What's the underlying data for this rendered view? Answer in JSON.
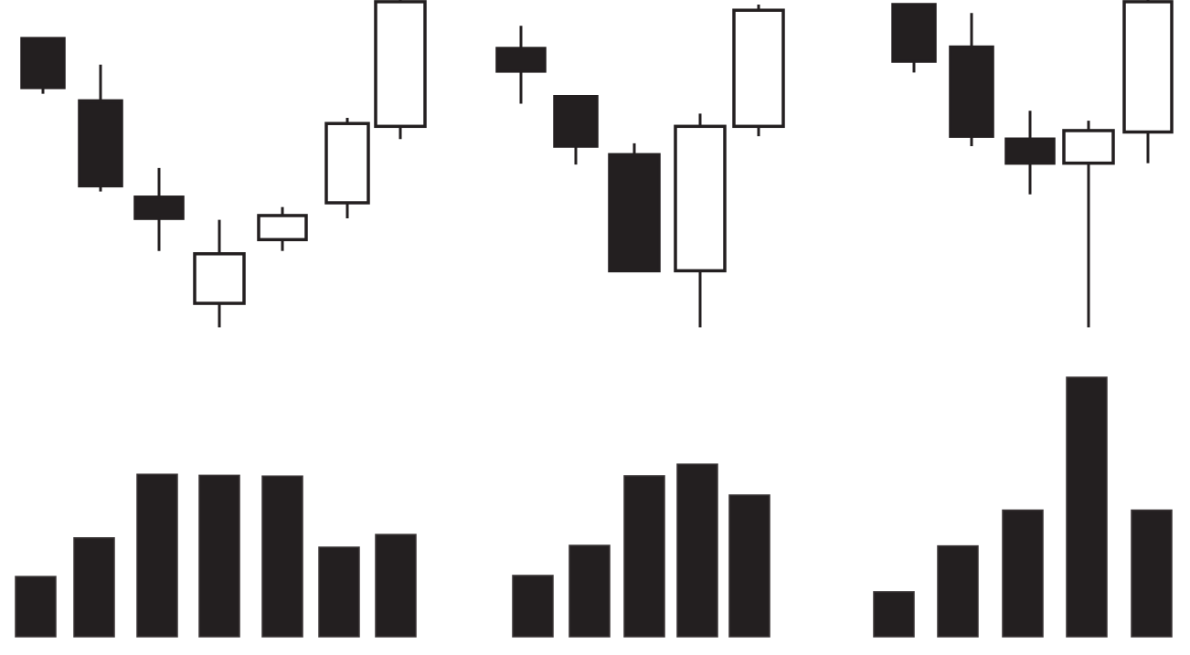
{
  "chart_data": [
    {
      "type": "candlestick",
      "panel": "left",
      "title": "",
      "xlabel": "",
      "ylabel": "",
      "ylim": [
        0,
        100
      ],
      "grid": false,
      "legend": "none",
      "candles": [
        {
          "open": 98.0,
          "high": 98.0,
          "low": 78.5,
          "close": 80.7,
          "direction": "down"
        },
        {
          "open": 76.0,
          "high": 88.8,
          "low": 44.0,
          "close": 46.0,
          "direction": "down"
        },
        {
          "open": 42.0,
          "high": 52.3,
          "low": 23.0,
          "close": 34.5,
          "direction": "down"
        },
        {
          "open": 4.5,
          "high": 34.0,
          "low": -4.0,
          "close": 22.0,
          "direction": "up"
        },
        {
          "open": 27.0,
          "high": 38.5,
          "low": 23.0,
          "close": 35.5,
          "direction": "up"
        },
        {
          "open": 40.0,
          "high": 70.0,
          "low": 34.5,
          "close": 68.0,
          "direction": "up"
        },
        {
          "open": 67.0,
          "high": 112.0,
          "low": 62.5,
          "close": 111.0,
          "direction": "up"
        }
      ]
    },
    {
      "type": "candlestick",
      "panel": "middle",
      "title": "",
      "xlabel": "",
      "ylabel": "",
      "ylim": [
        0,
        100
      ],
      "grid": false,
      "legend": "none",
      "candles": [
        {
          "open": 94.5,
          "high": 102.5,
          "low": 75.0,
          "close": 86.5,
          "direction": "down"
        },
        {
          "open": 77.5,
          "high": 77.5,
          "low": 53.5,
          "close": 60.0,
          "direction": "down"
        },
        {
          "open": 57.0,
          "high": 61.0,
          "low": 16.0,
          "close": 16.0,
          "direction": "down"
        },
        {
          "open": 16.0,
          "high": 71.5,
          "low": -4.0,
          "close": 67.0,
          "direction": "up"
        },
        {
          "open": 67.0,
          "high": 110.0,
          "low": 63.5,
          "close": 108.0,
          "direction": "up"
        }
      ]
    },
    {
      "type": "candlestick",
      "panel": "right",
      "title": "",
      "xlabel": "",
      "ylabel": "",
      "ylim": [
        0,
        100
      ],
      "grid": false,
      "legend": "none",
      "candles": [
        {
          "open": 110.0,
          "high": 110.0,
          "low": 86.0,
          "close": 90.0,
          "direction": "down"
        },
        {
          "open": 95.0,
          "high": 107.0,
          "low": 60.0,
          "close": 63.5,
          "direction": "down"
        },
        {
          "open": 62.5,
          "high": 72.5,
          "low": 43.0,
          "close": 54.0,
          "direction": "down"
        },
        {
          "open": 54.0,
          "high": 69.0,
          "low": -4.0,
          "close": 65.5,
          "direction": "up"
        },
        {
          "open": 65.0,
          "high": 116.0,
          "low": 54.0,
          "close": 111.0,
          "direction": "up"
        }
      ]
    },
    {
      "type": "bar",
      "panel": "left",
      "title": "",
      "xlabel": "",
      "ylabel": "",
      "ylim": [
        0,
        100
      ],
      "grid": false,
      "legend": "none",
      "values": [
        23.2,
        38.1,
        62.6,
        62.2,
        61.9,
        34.5,
        39.4
      ]
    },
    {
      "type": "bar",
      "panel": "middle",
      "title": "",
      "xlabel": "",
      "ylabel": "",
      "ylim": [
        0,
        100
      ],
      "grid": false,
      "legend": "none",
      "values": [
        23.6,
        35.2,
        62.0,
        66.5,
        54.6
      ]
    },
    {
      "type": "bar",
      "panel": "right",
      "title": "",
      "xlabel": "",
      "ylabel": "",
      "ylim": [
        0,
        100
      ],
      "grid": false,
      "legend": "none",
      "values": [
        17.3,
        35.0,
        48.8,
        100.0,
        48.8
      ]
    }
  ],
  "colors": {
    "body_down": "#231f20",
    "body_up": "#ffffff",
    "stroke": "#231f20",
    "background": "#ffffff"
  }
}
